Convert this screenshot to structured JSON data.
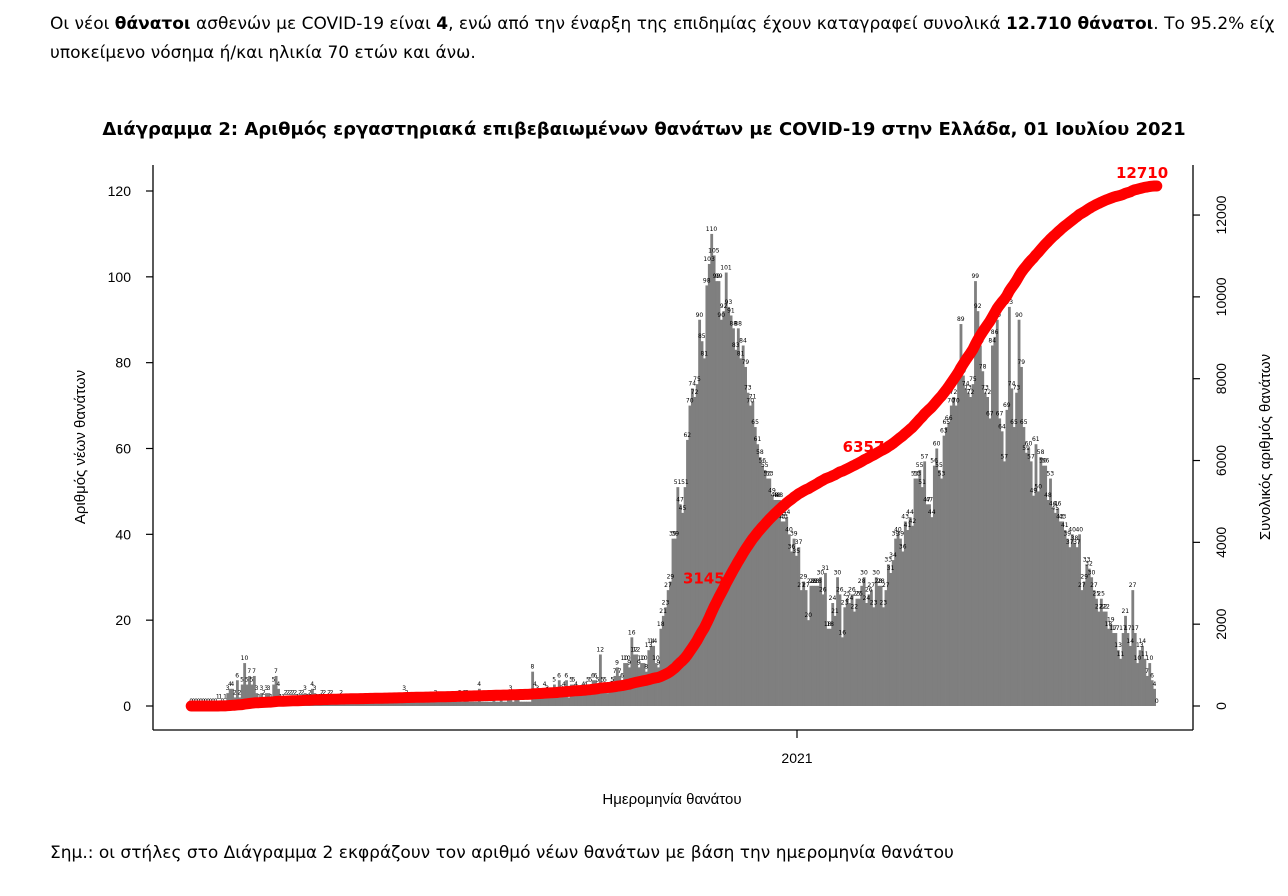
{
  "intro": {
    "p1": "Οι νέοι ",
    "b1": "θάνατοι",
    "p2": " ασθενών με COVID-19 είναι ",
    "b2": "4",
    "p3": ", ενώ από την έναρξη της επιδημίας έχουν καταγραφεί συνολικά ",
    "b3": "12.710 θάνατοι",
    "p4": ".  Το 95.2% είχ",
    "line2": "υποκείμενο νόσημα ή/και ηλικία 70 ετών και άνω."
  },
  "note": "Σημ.: οι στήλες στο Διάγραμμα 2 εκφράζουν τον αριθμό νέων θανάτων με βάση την ημερομηνία θανάτου",
  "colors": {
    "bars": "#7f7f7f",
    "cumulative": "#ff0000",
    "labels": "#ff0000"
  },
  "chart_data": {
    "type": "bar",
    "title": "Διάγραμμα 2: Αριθμός εργαστηριακά επιβεβαιωμένων θανάτων με COVID-19 στην Ελλάδα, 01 Ιουλίου 2021",
    "xlabel": "Ημερομηνία θανάτου",
    "ylabel": "Αριθμός νέων θανάτων",
    "y2label": "Συνολικός αριθμός θανάτων",
    "ylim": [
      0,
      125
    ],
    "y2lim": [
      0,
      12710
    ],
    "yticks": [
      0,
      20,
      40,
      60,
      80,
      100,
      120
    ],
    "y2ticks": [
      0,
      2000,
      4000,
      6000,
      8000,
      10000,
      12000
    ],
    "xtick_label": "2021",
    "grid": false,
    "series": [
      {
        "type": "bar",
        "values": [
          0,
          0,
          0,
          0,
          0,
          0,
          0,
          0,
          0,
          0,
          0,
          1,
          1,
          0,
          1,
          3,
          4,
          4,
          2,
          6,
          2,
          5,
          10,
          5,
          7,
          5,
          7,
          3,
          1,
          3,
          2,
          3,
          3,
          1,
          5,
          7,
          4,
          1,
          1,
          2,
          2,
          2,
          2,
          2,
          1,
          2,
          2,
          3,
          1,
          2,
          4,
          3,
          1,
          1,
          2,
          2,
          1,
          2,
          2,
          1,
          1,
          1,
          2,
          1,
          1,
          1,
          1,
          1,
          1,
          1,
          1,
          1,
          1,
          1,
          1,
          1,
          1,
          1,
          1,
          1,
          1,
          1,
          1,
          1,
          1,
          1,
          1,
          1,
          3,
          2,
          1,
          1,
          1,
          1,
          1,
          1,
          1,
          1,
          1,
          1,
          1,
          2,
          1,
          1,
          1,
          1,
          1,
          1,
          1,
          1,
          1,
          2,
          1,
          2,
          2,
          1,
          1,
          1,
          1,
          4,
          1,
          1,
          1,
          1,
          1,
          2,
          1,
          1,
          2,
          1,
          1,
          2,
          3,
          1,
          2,
          2,
          1,
          1,
          1,
          1,
          1,
          8,
          4,
          3,
          2,
          2,
          4,
          3,
          2,
          2,
          5,
          2,
          6,
          3,
          4,
          6,
          2,
          5,
          5,
          4,
          3,
          3,
          4,
          4,
          5,
          5,
          6,
          6,
          5,
          12,
          5,
          5,
          3,
          4,
          5,
          7,
          9,
          7,
          6,
          10,
          10,
          9,
          16,
          12,
          12,
          9,
          10,
          10,
          8,
          13,
          14,
          14,
          10,
          9,
          18,
          21,
          23,
          27,
          29,
          39,
          39,
          51,
          47,
          45,
          51,
          62,
          70,
          74,
          72,
          75,
          90,
          85,
          81,
          98,
          103,
          110,
          105,
          99,
          99,
          90,
          92,
          101,
          93,
          91,
          88,
          83,
          88,
          81,
          84,
          79,
          73,
          70,
          71,
          65,
          61,
          58,
          56,
          55,
          53,
          53,
          49,
          48,
          48,
          48,
          43,
          43,
          44,
          40,
          36,
          39,
          35,
          37,
          27,
          29,
          27,
          20,
          28,
          28,
          28,
          28,
          30,
          26,
          31,
          18,
          18,
          24,
          21,
          30,
          26,
          16,
          23,
          25,
          24,
          26,
          22,
          25,
          25,
          28,
          30,
          24,
          26,
          27,
          23,
          30,
          28,
          28,
          23,
          27,
          33,
          31,
          34,
          39,
          40,
          39,
          36,
          43,
          41,
          44,
          42,
          53,
          53,
          55,
          51,
          57,
          47,
          47,
          44,
          56,
          60,
          55,
          53,
          63,
          65,
          66,
          70,
          72,
          70,
          77,
          89,
          77,
          74,
          73,
          72,
          75,
          99,
          92,
          84,
          78,
          73,
          72,
          67,
          84,
          86,
          90,
          67,
          64,
          57,
          69,
          93,
          74,
          65,
          73,
          90,
          79,
          65,
          59,
          60,
          57,
          49,
          61,
          50,
          58,
          56,
          56,
          48,
          53,
          46,
          45,
          46,
          43,
          43,
          41,
          39,
          37,
          40,
          38,
          37,
          40,
          27,
          29,
          33,
          32,
          30,
          27,
          25,
          22,
          25,
          22,
          22,
          18,
          19,
          17,
          17,
          13,
          11,
          17,
          21,
          17,
          14,
          27,
          17,
          10,
          13,
          14,
          11,
          7,
          10,
          6,
          4,
          0
        ]
      },
      {
        "type": "line",
        "name": "Συνολικός αριθμός θανάτων",
        "point_labels": [
          {
            "label": "3145",
            "value": 3145
          },
          {
            "label": "6357",
            "value": 6357
          },
          {
            "label": "12710",
            "value": 12710
          }
        ]
      }
    ]
  }
}
